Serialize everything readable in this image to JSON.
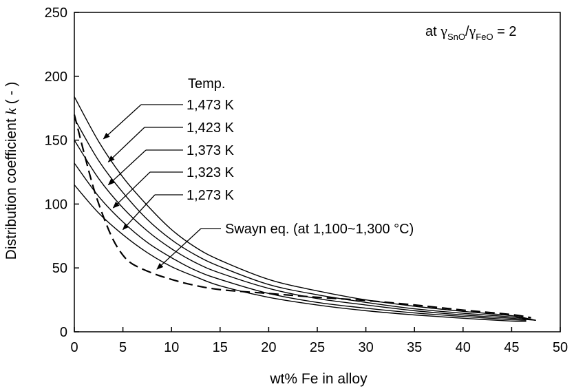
{
  "chart_data": {
    "type": "line",
    "xlabel": "wt% Fe in alloy",
    "ylabel_main": "Distribution coefficient ",
    "ylabel_var": "k",
    "ylabel_unit": " ( - )",
    "xlim": [
      0,
      50
    ],
    "ylim": [
      0,
      250
    ],
    "xticks": [
      "0",
      "5",
      "10",
      "15",
      "20",
      "25",
      "30",
      "35",
      "40",
      "45",
      "50"
    ],
    "yticks": [
      "0",
      "50",
      "100",
      "150",
      "200",
      "250"
    ],
    "annotation": {
      "prefix": "at ",
      "gamma": "γ",
      "sub1": "SnO",
      "slash": "/",
      "sub2": "FeO",
      "suffix": " = 2"
    },
    "legend_title": "Temp.",
    "series": [
      {
        "name": "1,473 K",
        "style": "solid",
        "x": [
          0,
          2.5,
          5,
          7.5,
          10,
          12.5,
          15,
          20,
          25,
          30,
          35,
          40,
          45,
          47.5
        ],
        "y": [
          184,
          149,
          121,
          99,
          80,
          66,
          56,
          41,
          32,
          25,
          20,
          16,
          12.6,
          9
        ]
      },
      {
        "name": "1,423 K",
        "style": "solid",
        "x": [
          0,
          2.5,
          5,
          7.5,
          10,
          12.5,
          15,
          20,
          25,
          30,
          35,
          40,
          45,
          47.5
        ],
        "y": [
          167,
          134,
          109,
          88,
          72,
          60,
          51,
          37,
          29,
          23,
          18,
          14.5,
          11.6,
          9
        ]
      },
      {
        "name": "1,373 K",
        "style": "solid",
        "x": [
          0,
          2.5,
          5,
          7.5,
          10,
          12.5,
          15,
          20,
          25,
          30,
          35,
          40,
          45,
          47.5
        ],
        "y": [
          150,
          120,
          97,
          79,
          65,
          54,
          46,
          34,
          26,
          21,
          16.5,
          13.2,
          10.6,
          9
        ]
      },
      {
        "name": "1,323 K",
        "style": "solid",
        "x": [
          0,
          2.5,
          5,
          7.5,
          10,
          12.5,
          15,
          20,
          25,
          30,
          35,
          40,
          45,
          46.5
        ],
        "y": [
          132,
          106,
          86,
          70,
          58,
          48,
          41,
          30,
          23,
          18.5,
          14.8,
          12,
          9.5,
          9
        ]
      },
      {
        "name": "1,273 K",
        "style": "solid",
        "x": [
          0,
          2.5,
          5,
          7.5,
          10,
          12.5,
          15,
          20,
          25,
          30,
          35,
          40,
          45,
          46.5
        ],
        "y": [
          115,
          93,
          76,
          62,
          51,
          43,
          36,
          27,
          21,
          16.5,
          13.2,
          10.6,
          8.4,
          8
        ]
      },
      {
        "name": "Swayn eq. (at 1,100~1,300 °C)",
        "style": "dashed",
        "x": [
          0,
          1,
          2,
          3,
          4,
          5,
          6,
          8,
          10,
          12,
          15,
          20,
          25,
          30,
          35,
          40,
          45,
          47
        ],
        "y": [
          170,
          140,
          112,
          90,
          72,
          60,
          53,
          46,
          41,
          37,
          33,
          30,
          27,
          24.5,
          21,
          17,
          13.5,
          11
        ]
      }
    ],
    "series_labels": [
      {
        "text": "1,473 K",
        "ax": 3,
        "ay": 151
      },
      {
        "text": "1,423 K",
        "ax": 3.5,
        "ay": 133
      },
      {
        "text": "1,373 K",
        "ax": 3.5,
        "ay": 115
      },
      {
        "text": "1,323 K",
        "ax": 4,
        "ay": 97
      },
      {
        "text": "1,273 K",
        "ax": 5,
        "ay": 80
      }
    ],
    "swayn_label": {
      "text": "Swayn eq. (at 1,100~1,300 °C)",
      "ax": 8.5,
      "ay": 49
    },
    "grid": false
  }
}
